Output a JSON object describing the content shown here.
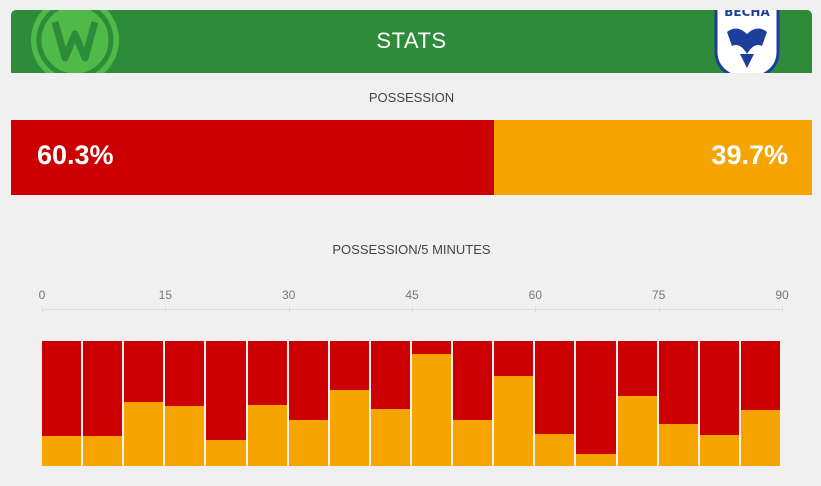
{
  "header": {
    "title": "STATS",
    "home_logo": "wolfsburg-logo",
    "away_logo": "vesna-logo",
    "away_logo_text": "ВЕСНА"
  },
  "possession": {
    "label": "POSSESSION",
    "home_pct_label": "60.3%",
    "away_pct_label": "39.7%",
    "home_value": 60.3,
    "away_value": 39.7
  },
  "chart_data": {
    "type": "bar",
    "title": "POSSESSION/5 MINUTES",
    "x_ticks": [
      "0",
      "15",
      "30",
      "45",
      "60",
      "75",
      "90"
    ],
    "xlim": [
      0,
      90
    ],
    "categories": [
      "0-5",
      "5-10",
      "10-15",
      "15-20",
      "20-25",
      "25-30",
      "30-35",
      "35-40",
      "40-45",
      "45-50",
      "50-55",
      "55-60",
      "60-65",
      "65-70",
      "70-75",
      "75-80",
      "80-85",
      "85-90"
    ],
    "series": [
      {
        "color": "#cc0000",
        "values": [
          76,
          76,
          49,
          52,
          79,
          51,
          63,
          39,
          54,
          10,
          63,
          28,
          74,
          90,
          44,
          66,
          75,
          55
        ]
      },
      {
        "color": "#f5a400",
        "values": [
          24,
          24,
          51,
          48,
          21,
          49,
          37,
          61,
          46,
          90,
          37,
          72,
          26,
          10,
          56,
          34,
          25,
          45
        ]
      }
    ],
    "stacked": true,
    "ylim": [
      0,
      100
    ]
  },
  "colors": {
    "header_green": "#2e8b3a",
    "home_red": "#cc0000",
    "away_orange": "#f5a400"
  }
}
